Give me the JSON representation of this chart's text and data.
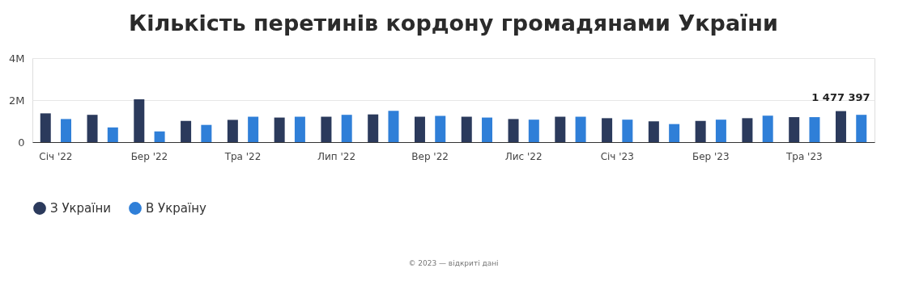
{
  "chart_data": {
    "type": "bar",
    "title": "Кількість перетинів кордону громадянами України",
    "categories": [
      "Січ '22",
      null,
      "Бер '22",
      null,
      "Тра '22",
      null,
      "Лип '22",
      null,
      "Вер '22",
      null,
      "Лис '22",
      null,
      "Січ '23",
      null,
      "Бер '23",
      null,
      "Тра '23",
      null
    ],
    "series": [
      {
        "name": "З України",
        "color": "#2b3a5c",
        "values": [
          1370000,
          1300000,
          2040000,
          1010000,
          1060000,
          1170000,
          1210000,
          1320000,
          1210000,
          1210000,
          1100000,
          1210000,
          1140000,
          990000,
          1010000,
          1140000,
          1190000,
          1477397
        ],
        "value_labels": [
          null,
          null,
          null,
          null,
          null,
          null,
          null,
          null,
          null,
          null,
          null,
          null,
          null,
          null,
          null,
          null,
          null,
          "1 477 397"
        ]
      },
      {
        "name": "В Україну",
        "color": "#2f7fd8",
        "values": [
          1100000,
          700000,
          510000,
          820000,
          1210000,
          1210000,
          1300000,
          1490000,
          1250000,
          1170000,
          1070000,
          1210000,
          1070000,
          860000,
          1070000,
          1260000,
          1190000,
          1300000
        ]
      }
    ],
    "ylim": [
      0,
      4000000
    ],
    "yticks": [
      {
        "value": 0,
        "label": "0"
      },
      {
        "value": 2000000,
        "label": "2M"
      },
      {
        "value": 4000000,
        "label": "4M"
      }
    ],
    "grid": "y",
    "legend": "bottom",
    "annotations": [
      "© 2023 — відкриті дані"
    ]
  }
}
